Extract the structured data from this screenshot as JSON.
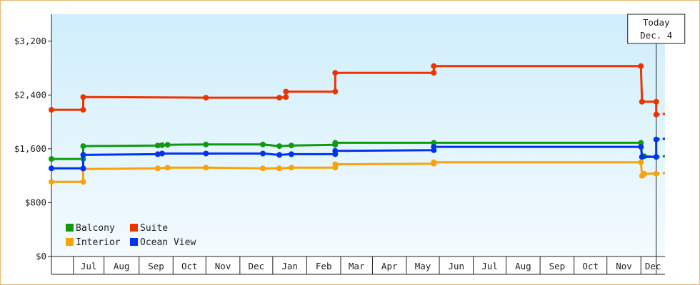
{
  "chart_data": {
    "type": "line",
    "step": true,
    "title": "",
    "xlabel": "",
    "ylabel": "",
    "ylim": [
      0,
      3600
    ],
    "y_ticks": [
      {
        "value": 0,
        "label": "$0"
      },
      {
        "value": 800,
        "label": "$800"
      },
      {
        "value": 1600,
        "label": "$1,600"
      },
      {
        "value": 2400,
        "label": "$2,400"
      },
      {
        "value": 3200,
        "label": "$3,200"
      }
    ],
    "x_start": "2011-06-01",
    "x_end": "2012-12-12",
    "x_months": [
      {
        "start": "2011-06-21",
        "end": "2011-07-19",
        "label": "Jul"
      },
      {
        "start": "2011-07-19",
        "end": "2011-08-20",
        "label": "Aug"
      },
      {
        "start": "2011-08-20",
        "end": "2011-09-20",
        "label": "Sep"
      },
      {
        "start": "2011-09-20",
        "end": "2011-10-20",
        "label": "Oct"
      },
      {
        "start": "2011-10-20",
        "end": "2011-11-20",
        "label": "Nov"
      },
      {
        "start": "2011-11-20",
        "end": "2011-12-20",
        "label": "Dec"
      },
      {
        "start": "2011-12-20",
        "end": "2012-01-20",
        "label": "Jan"
      },
      {
        "start": "2012-01-20",
        "end": "2012-02-20",
        "label": "Feb"
      },
      {
        "start": "2012-02-20",
        "end": "2012-03-20",
        "label": "Mar"
      },
      {
        "start": "2012-03-20",
        "end": "2012-04-20",
        "label": "Apr"
      },
      {
        "start": "2012-04-20",
        "end": "2012-05-20",
        "label": "May"
      },
      {
        "start": "2012-05-20",
        "end": "2012-06-20",
        "label": "Jun"
      },
      {
        "start": "2012-06-20",
        "end": "2012-07-20",
        "label": "Jul"
      },
      {
        "start": "2012-07-20",
        "end": "2012-08-20",
        "label": "Aug"
      },
      {
        "start": "2012-08-20",
        "end": "2012-09-20",
        "label": "Sep"
      },
      {
        "start": "2012-09-20",
        "end": "2012-10-20",
        "label": "Oct"
      },
      {
        "start": "2012-10-20",
        "end": "2012-11-20",
        "label": "Nov"
      },
      {
        "start": "2012-11-20",
        "end": "2012-12-12",
        "label": "Dec"
      }
    ],
    "today": {
      "date": "2012-12-04",
      "line1": "Today",
      "line2": "Dec. 4"
    },
    "legend": {
      "placement": "bottom-left"
    },
    "grid": false,
    "series": [
      {
        "name": "Balcony",
        "color": "#119911",
        "points": [
          {
            "x": "2011-06-01",
            "y": 1450
          },
          {
            "x": "2011-06-30",
            "y": 1450
          },
          {
            "x": "2011-06-30",
            "y": 1640
          },
          {
            "x": "2011-09-06",
            "y": 1650
          },
          {
            "x": "2011-09-10",
            "y": 1655
          },
          {
            "x": "2011-09-15",
            "y": 1660
          },
          {
            "x": "2011-10-20",
            "y": 1665
          },
          {
            "x": "2011-12-11",
            "y": 1665
          },
          {
            "x": "2011-12-26",
            "y": 1640
          },
          {
            "x": "2012-01-06",
            "y": 1650
          },
          {
            "x": "2012-02-15",
            "y": 1660
          },
          {
            "x": "2012-02-15",
            "y": 1690
          },
          {
            "x": "2012-05-15",
            "y": 1690
          },
          {
            "x": "2012-11-20",
            "y": 1690
          },
          {
            "x": "2012-11-21",
            "y": 1480
          },
          {
            "x": "2012-11-23",
            "y": 1490
          },
          {
            "x": "2012-12-04",
            "y": 1480
          }
        ],
        "forecast": [
          {
            "x": "2012-12-04",
            "y": 1480
          },
          {
            "x": "2012-12-12",
            "y": 1490
          }
        ]
      },
      {
        "name": "Suite",
        "color": "#ee3300",
        "points": [
          {
            "x": "2011-06-01",
            "y": 2180
          },
          {
            "x": "2011-06-30",
            "y": 2180
          },
          {
            "x": "2011-06-30",
            "y": 2370
          },
          {
            "x": "2011-10-20",
            "y": 2360
          },
          {
            "x": "2011-12-26",
            "y": 2360
          },
          {
            "x": "2012-01-01",
            "y": 2370
          },
          {
            "x": "2012-01-01",
            "y": 2450
          },
          {
            "x": "2012-02-15",
            "y": 2450
          },
          {
            "x": "2012-02-15",
            "y": 2730
          },
          {
            "x": "2012-05-15",
            "y": 2730
          },
          {
            "x": "2012-05-15",
            "y": 2830
          },
          {
            "x": "2012-11-20",
            "y": 2830
          },
          {
            "x": "2012-11-21",
            "y": 2300
          },
          {
            "x": "2012-12-04",
            "y": 2300
          },
          {
            "x": "2012-12-04",
            "y": 2110
          }
        ],
        "forecast": [
          {
            "x": "2012-12-04",
            "y": 2110
          },
          {
            "x": "2012-12-12",
            "y": 2120
          }
        ]
      },
      {
        "name": "Interior",
        "color": "#f8a30a",
        "points": [
          {
            "x": "2011-06-01",
            "y": 1110
          },
          {
            "x": "2011-06-30",
            "y": 1110
          },
          {
            "x": "2011-06-30",
            "y": 1300
          },
          {
            "x": "2011-09-06",
            "y": 1310
          },
          {
            "x": "2011-09-15",
            "y": 1320
          },
          {
            "x": "2011-10-20",
            "y": 1320
          },
          {
            "x": "2011-12-11",
            "y": 1310
          },
          {
            "x": "2011-12-26",
            "y": 1310
          },
          {
            "x": "2012-01-06",
            "y": 1320
          },
          {
            "x": "2012-02-15",
            "y": 1320
          },
          {
            "x": "2012-02-15",
            "y": 1370
          },
          {
            "x": "2012-05-15",
            "y": 1380
          },
          {
            "x": "2012-05-15",
            "y": 1400
          },
          {
            "x": "2012-11-20",
            "y": 1400
          },
          {
            "x": "2012-11-21",
            "y": 1200
          },
          {
            "x": "2012-11-22",
            "y": 1210
          },
          {
            "x": "2012-11-23",
            "y": 1230
          },
          {
            "x": "2012-12-04",
            "y": 1230
          }
        ],
        "forecast": [
          {
            "x": "2012-12-04",
            "y": 1230
          },
          {
            "x": "2012-12-12",
            "y": 1240
          }
        ]
      },
      {
        "name": "Ocean View",
        "color": "#0033ee",
        "points": [
          {
            "x": "2011-06-01",
            "y": 1310
          },
          {
            "x": "2011-06-30",
            "y": 1310
          },
          {
            "x": "2011-06-30",
            "y": 1510
          },
          {
            "x": "2011-09-06",
            "y": 1520
          },
          {
            "x": "2011-09-10",
            "y": 1530
          },
          {
            "x": "2011-10-20",
            "y": 1530
          },
          {
            "x": "2011-12-11",
            "y": 1530
          },
          {
            "x": "2011-12-26",
            "y": 1510
          },
          {
            "x": "2012-01-06",
            "y": 1520
          },
          {
            "x": "2012-02-15",
            "y": 1520
          },
          {
            "x": "2012-02-15",
            "y": 1570
          },
          {
            "x": "2012-05-15",
            "y": 1580
          },
          {
            "x": "2012-05-15",
            "y": 1630
          },
          {
            "x": "2012-11-20",
            "y": 1630
          },
          {
            "x": "2012-11-21",
            "y": 1480
          },
          {
            "x": "2012-12-04",
            "y": 1480
          },
          {
            "x": "2012-12-04",
            "y": 1740
          }
        ],
        "forecast": [
          {
            "x": "2012-12-04",
            "y": 1740
          },
          {
            "x": "2012-12-12",
            "y": 1750
          }
        ]
      }
    ]
  }
}
